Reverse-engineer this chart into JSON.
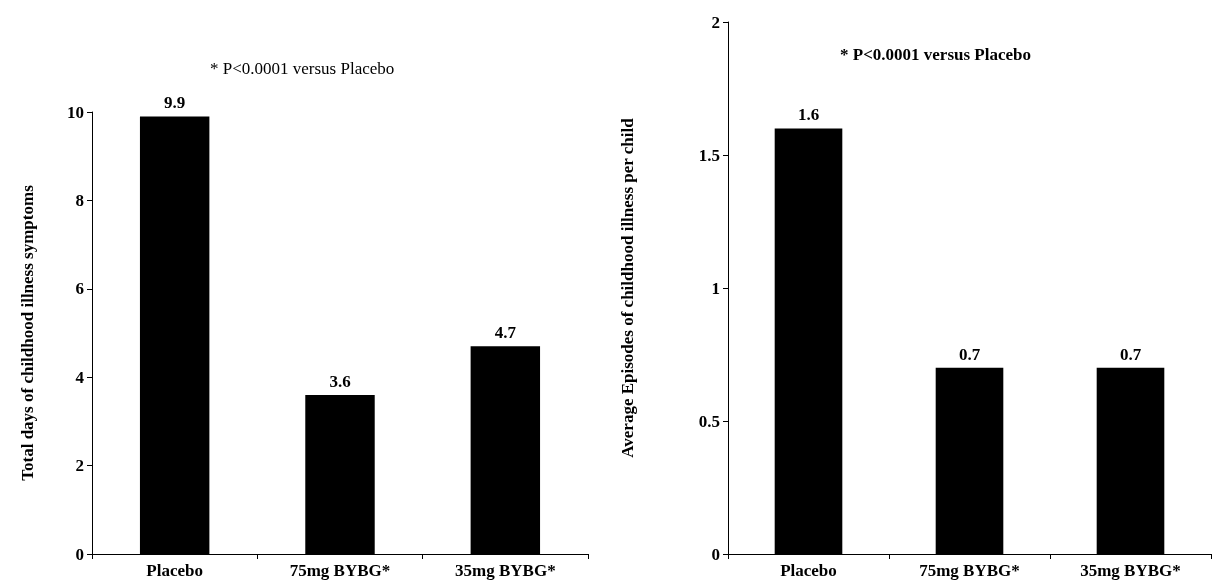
{
  "chart_data": [
    {
      "type": "bar",
      "ylabel": "Total days of childhood illness symptoms",
      "categories": [
        "Placebo",
        "75mg BYBG*",
        "35mg BYBG*"
      ],
      "values": [
        9.9,
        3.6,
        4.7
      ],
      "color": "#000000",
      "ylim": [
        0,
        10
      ],
      "yticks": [
        0,
        2,
        4,
        6,
        8,
        10
      ],
      "grid": false,
      "data_labels": true,
      "annotations": [
        "* P<0.0001 versus Placebo"
      ]
    },
    {
      "type": "bar",
      "ylabel": "Average Episodes of childhood illness per child",
      "categories": [
        "Placebo",
        "75mg BYBG*",
        "35mg BYBG*"
      ],
      "values": [
        1.6,
        0.7,
        0.7
      ],
      "color": "#000000",
      "ylim": [
        0,
        2
      ],
      "yticks": [
        0,
        0.5,
        1,
        1.5,
        2
      ],
      "grid": false,
      "data_labels": true,
      "annotations": [
        "* P<0.0001 versus Placebo"
      ]
    }
  ]
}
